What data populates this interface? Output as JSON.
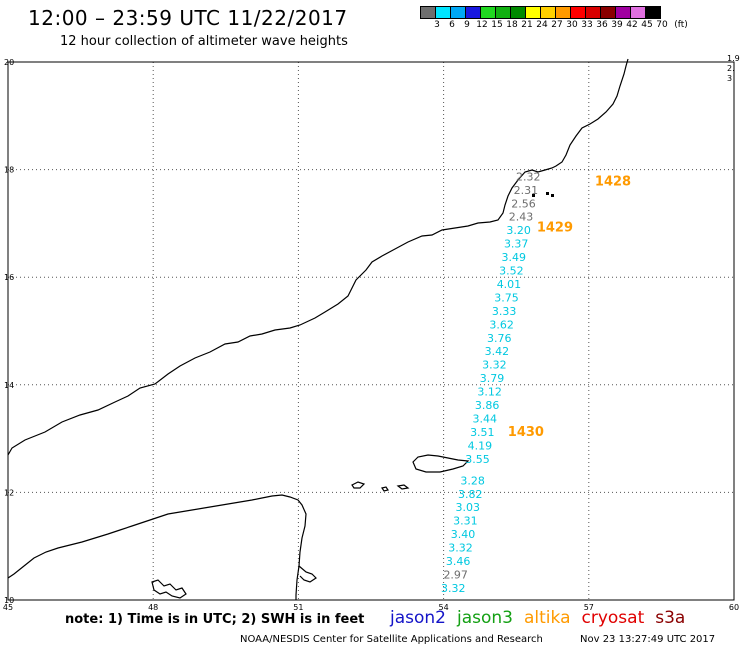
{
  "header": {
    "title": "12:00 – 23:59 UTC 11/22/2017",
    "subtitle": "12 hour collection of altimeter wave heights"
  },
  "legend": {
    "unit": "(ft)",
    "bins": [
      {
        "label": "3",
        "color": "#6e6e6e"
      },
      {
        "label": "6",
        "color": "#00e5ff"
      },
      {
        "label": "9",
        "color": "#00a8f5"
      },
      {
        "label": "12",
        "color": "#1818e0"
      },
      {
        "label": "15",
        "color": "#20d820"
      },
      {
        "label": "18",
        "color": "#10b010"
      },
      {
        "label": "21",
        "color": "#008a00"
      },
      {
        "label": "24",
        "color": "#ffff00"
      },
      {
        "label": "27",
        "color": "#ffd000"
      },
      {
        "label": "30",
        "color": "#ff9a00"
      },
      {
        "label": "33",
        "color": "#ff0000"
      },
      {
        "label": "36",
        "color": "#d80000"
      },
      {
        "label": "39",
        "color": "#8a0000"
      },
      {
        "label": "42",
        "color": "#a000a0"
      },
      {
        "label": "45",
        "color": "#e070e0"
      },
      {
        "label": "70",
        "color": "#000000"
      }
    ]
  },
  "map": {
    "lon_min": 45,
    "lon_max": 60,
    "lat_min": 10,
    "lat_max": 20,
    "lon_ticks": [
      "45",
      "48",
      "51",
      "54",
      "57",
      "60"
    ],
    "lat_ticks": [
      "10",
      "12",
      "14",
      "16",
      "18",
      "20"
    ],
    "right_edge_labels": [
      "1.9",
      "2.",
      "3"
    ],
    "times": [
      {
        "label": "1428",
        "lon": 57.5,
        "lat": 17.7
      },
      {
        "label": "1429",
        "lon": 56.3,
        "lat": 16.85
      },
      {
        "label": "1430",
        "lon": 55.7,
        "lat": 13.05
      }
    ],
    "swh": [
      {
        "v": "2.32",
        "lon": 55.75,
        "lat": 17.8,
        "c": "#6e6e6e"
      },
      {
        "v": "2.31",
        "lon": 55.7,
        "lat": 17.55,
        "c": "#6e6e6e"
      },
      {
        "v": "2.56",
        "lon": 55.65,
        "lat": 17.3,
        "c": "#6e6e6e"
      },
      {
        "v": "2.43",
        "lon": 55.6,
        "lat": 17.05,
        "c": "#6e6e6e"
      },
      {
        "v": "3.20",
        "lon": 55.55,
        "lat": 16.8,
        "c": "#00c8e0"
      },
      {
        "v": "3.37",
        "lon": 55.5,
        "lat": 16.55,
        "c": "#00c8e0"
      },
      {
        "v": "3.49",
        "lon": 55.45,
        "lat": 16.3,
        "c": "#00c8e0"
      },
      {
        "v": "3.52",
        "lon": 55.4,
        "lat": 16.05,
        "c": "#00c8e0"
      },
      {
        "v": "4.01",
        "lon": 55.35,
        "lat": 15.8,
        "c": "#00c8e0"
      },
      {
        "v": "3.75",
        "lon": 55.3,
        "lat": 15.55,
        "c": "#00c8e0"
      },
      {
        "v": "3.33",
        "lon": 55.25,
        "lat": 15.3,
        "c": "#00c8e0"
      },
      {
        "v": "3.62",
        "lon": 55.2,
        "lat": 15.05,
        "c": "#00c8e0"
      },
      {
        "v": "3.76",
        "lon": 55.15,
        "lat": 14.8,
        "c": "#00c8e0"
      },
      {
        "v": "3.42",
        "lon": 55.1,
        "lat": 14.55,
        "c": "#00c8e0"
      },
      {
        "v": "3.32",
        "lon": 55.05,
        "lat": 14.3,
        "c": "#00c8e0"
      },
      {
        "v": "3.79",
        "lon": 55.0,
        "lat": 14.05,
        "c": "#00c8e0"
      },
      {
        "v": "3.12",
        "lon": 54.95,
        "lat": 13.8,
        "c": "#00c8e0"
      },
      {
        "v": "3.86",
        "lon": 54.9,
        "lat": 13.55,
        "c": "#00c8e0"
      },
      {
        "v": "3.44",
        "lon": 54.85,
        "lat": 13.3,
        "c": "#00c8e0"
      },
      {
        "v": "3.51",
        "lon": 54.8,
        "lat": 13.05,
        "c": "#00c8e0"
      },
      {
        "v": "4.19",
        "lon": 54.75,
        "lat": 12.8,
        "c": "#00c8e0"
      },
      {
        "v": "3.55",
        "lon": 54.7,
        "lat": 12.55,
        "c": "#00c8e0"
      },
      {
        "v": "3.28",
        "lon": 54.6,
        "lat": 12.15,
        "c": "#00c8e0"
      },
      {
        "v": "3.82",
        "lon": 54.55,
        "lat": 11.9,
        "c": "#00c8e0"
      },
      {
        "v": "3.03",
        "lon": 54.5,
        "lat": 11.65,
        "c": "#00c8e0"
      },
      {
        "v": "3.31",
        "lon": 54.45,
        "lat": 11.4,
        "c": "#00c8e0"
      },
      {
        "v": "3.40",
        "lon": 54.4,
        "lat": 11.15,
        "c": "#00c8e0"
      },
      {
        "v": "3.32",
        "lon": 54.35,
        "lat": 10.9,
        "c": "#00c8e0"
      },
      {
        "v": "3.46",
        "lon": 54.3,
        "lat": 10.65,
        "c": "#00c8e0"
      },
      {
        "v": "2.97",
        "lon": 54.25,
        "lat": 10.4,
        "c": "#6e6e6e"
      },
      {
        "v": "3.32",
        "lon": 54.2,
        "lat": 10.15,
        "c": "#00c8e0"
      }
    ]
  },
  "footer": {
    "note": "note: 1) Time is in UTC; 2) SWH is in feet",
    "missions": [
      {
        "name": "jason2",
        "color": "#1414c8"
      },
      {
        "name": "jason3",
        "color": "#14a014"
      },
      {
        "name": "altika",
        "color": "#ff9a00"
      },
      {
        "name": "cryosat",
        "color": "#e00000"
      },
      {
        "name": "s3a",
        "color": "#8a0000"
      }
    ],
    "credit": "NOAA/NESDIS Center for Satellite Applications and Research",
    "timestamp": "Nov 23 13:27:49 UTC 2017"
  }
}
